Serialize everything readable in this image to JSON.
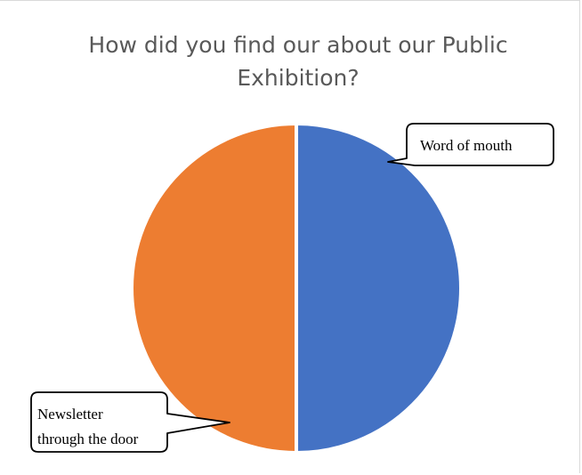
{
  "chart_data": {
    "type": "pie",
    "title": "How did you find our about our Public Exhibition?",
    "categories": [
      "Word of mouth",
      "Newsletter through the door"
    ],
    "values": [
      50,
      50
    ],
    "colors": [
      "#4472c4",
      "#ed7d31"
    ],
    "callouts": [
      {
        "lines": [
          "Word of mouth"
        ]
      },
      {
        "lines": [
          "Newsletter",
          "through the door"
        ]
      }
    ],
    "legend": "none"
  }
}
